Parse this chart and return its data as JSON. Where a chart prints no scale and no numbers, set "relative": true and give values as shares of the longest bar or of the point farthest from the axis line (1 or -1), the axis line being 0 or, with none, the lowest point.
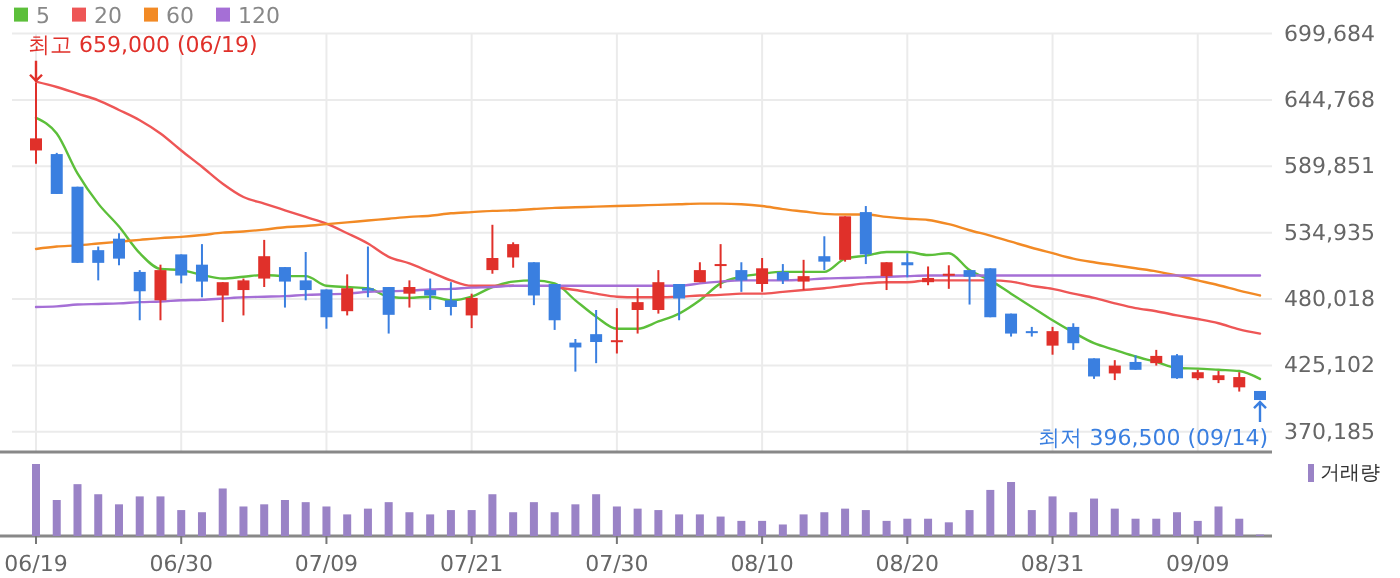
{
  "chart_data": [
    {
      "type": "candlestick",
      "categories": [
        null,
        null,
        null,
        null,
        null,
        null,
        null,
        null,
        null,
        null,
        null,
        null,
        null,
        null,
        null,
        null,
        null,
        null,
        null,
        null,
        null,
        null,
        null,
        null,
        null,
        null,
        null,
        null,
        null,
        null,
        null,
        null,
        null,
        null,
        null,
        null,
        null,
        null,
        null,
        null,
        null,
        null,
        null,
        null,
        null,
        null,
        null,
        null,
        null,
        null,
        null,
        null,
        null,
        null,
        null,
        null,
        null,
        null,
        null,
        null
      ],
      "ohlc": [
        [
          603000,
          659000,
          592000,
          613000
        ],
        [
          600000,
          601000,
          567000,
          567000
        ],
        [
          573000,
          573000,
          510000,
          510000
        ],
        [
          520500,
          523500,
          495500,
          510000
        ],
        [
          530000,
          534500,
          508000,
          513500
        ],
        [
          502500,
          504000,
          462500,
          486500
        ],
        [
          479000,
          508500,
          462500,
          504000
        ],
        [
          517000,
          517000,
          493000,
          499500
        ],
        [
          508500,
          525500,
          481500,
          494500
        ],
        [
          483000,
          494000,
          461000,
          494000
        ],
        [
          487500,
          497000,
          466500,
          495500
        ],
        [
          497000,
          529000,
          490000,
          515500
        ],
        [
          506500,
          506500,
          473000,
          494500
        ],
        [
          495500,
          519000,
          479000,
          487500
        ],
        [
          488000,
          488000,
          455500,
          465000
        ],
        [
          470000,
          500500,
          466500,
          489000
        ],
        [
          489000,
          523500,
          481500,
          487000
        ],
        [
          490000,
          490000,
          451500,
          467000
        ],
        [
          484500,
          495500,
          473000,
          490000
        ],
        [
          487500,
          497000,
          471000,
          483000
        ],
        [
          479000,
          494000,
          466500,
          473500
        ],
        [
          466500,
          484500,
          456000,
          481000
        ],
        [
          504000,
          541500,
          501000,
          514000
        ],
        [
          514500,
          527000,
          506000,
          525500
        ],
        [
          510500,
          510500,
          475000,
          483000
        ],
        [
          492500,
          492500,
          454500,
          462500
        ],
        [
          444000,
          447000,
          420000,
          440000
        ],
        [
          451000,
          471000,
          427000,
          444500
        ],
        [
          445000,
          472500,
          435000,
          446000
        ],
        [
          471000,
          489000,
          451500,
          477500
        ],
        [
          471000,
          504000,
          468000,
          494000
        ],
        [
          492500,
          492500,
          462500,
          480500
        ],
        [
          494000,
          510500,
          494000,
          504000
        ],
        [
          508000,
          525500,
          489000,
          509000
        ],
        [
          504000,
          510500,
          486000,
          495500
        ],
        [
          492500,
          514000,
          486000,
          505500
        ],
        [
          502500,
          509000,
          492500,
          495500
        ],
        [
          494500,
          512500,
          487500,
          499000
        ],
        [
          515500,
          532000,
          504000,
          511000
        ],
        [
          512500,
          548500,
          511000,
          548500
        ],
        [
          552000,
          557000,
          509000,
          517000
        ],
        [
          499000,
          510500,
          487500,
          510500
        ],
        [
          510500,
          518000,
          498000,
          508000
        ],
        [
          494000,
          507000,
          491500,
          497500
        ],
        [
          500000,
          508000,
          488500,
          501000
        ],
        [
          504000,
          504000,
          475500,
          498500
        ],
        [
          505500,
          505500,
          465000,
          465000
        ],
        [
          468000,
          468000,
          449000,
          451500
        ],
        [
          453500,
          457000,
          449000,
          452000
        ],
        [
          441500,
          457000,
          434000,
          453500
        ],
        [
          457000,
          460000,
          438000,
          443500
        ],
        [
          431000,
          431000,
          414000,
          416000
        ],
        [
          418500,
          429500,
          413000,
          425000
        ],
        [
          428000,
          433500,
          421500,
          421500
        ],
        [
          427000,
          438000,
          425000,
          433000
        ],
        [
          433500,
          434500,
          414000,
          414500
        ],
        [
          414500,
          421500,
          413000,
          419500
        ],
        [
          413000,
          420500,
          410500,
          417000
        ],
        [
          407000,
          419500,
          403500,
          415500
        ],
        [
          404000,
          404000,
          396500,
          396500
        ]
      ],
      "colors": [
        "#e0302a",
        "#3a7fe0",
        "#3a7fe0",
        "#3a7fe0",
        "#3a7fe0",
        "#3a7fe0",
        "#e0302a",
        "#3a7fe0",
        "#3a7fe0",
        "#e0302a",
        "#e0302a",
        "#e0302a",
        "#3a7fe0",
        "#3a7fe0",
        "#3a7fe0",
        "#e0302a",
        "#3a7fe0",
        "#3a7fe0",
        "#e0302a",
        "#3a7fe0",
        "#3a7fe0",
        "#e0302a",
        "#e0302a",
        "#e0302a",
        "#3a7fe0",
        "#3a7fe0",
        "#3a7fe0",
        "#3a7fe0",
        "#e0302a",
        "#e0302a",
        "#e0302a",
        "#3a7fe0",
        "#e0302a",
        "#e0302a",
        "#3a7fe0",
        "#e0302a",
        "#3a7fe0",
        "#e0302a",
        "#3a7fe0",
        "#e0302a",
        "#3a7fe0",
        "#e0302a",
        "#3a7fe0",
        "#e0302a",
        "#e0302a",
        "#3a7fe0",
        "#3a7fe0",
        "#3a7fe0",
        "#3a7fe0",
        "#e0302a",
        "#3a7fe0",
        "#3a7fe0",
        "#e0302a",
        "#3a7fe0",
        "#e0302a",
        "#3a7fe0",
        "#e0302a",
        "#e0302a",
        "#e0302a",
        "#3a7fe0"
      ],
      "series": [
        {
          "name": "5",
          "type": "line",
          "color": "#5cbf3a",
          "values": [
            630000,
            617000,
            584000,
            559000,
            540000,
            518000,
            505000,
            504000,
            500000,
            497000,
            498500,
            500000,
            499000,
            499000,
            491000,
            490000,
            489000,
            482000,
            481000,
            482000,
            479000,
            482000,
            490000,
            494500,
            495500,
            493000,
            479000,
            465500,
            455500,
            455500,
            461500,
            468000,
            479000,
            493000,
            498500,
            501000,
            502500,
            502500,
            502500,
            513500,
            516000,
            519000,
            519000,
            516500,
            518000,
            504000,
            495500,
            484500,
            473500,
            462500,
            452500,
            443500,
            438000,
            432500,
            428000,
            423000,
            422500,
            421500,
            420500,
            414000
          ]
        },
        {
          "name": "20",
          "type": "line",
          "color": "#ee5656",
          "values": [
            660000,
            655500,
            650000,
            644500,
            636500,
            628000,
            617000,
            603000,
            589500,
            575500,
            564500,
            559000,
            553500,
            548000,
            542500,
            534500,
            526000,
            515000,
            509500,
            502500,
            495500,
            491000,
            491000,
            491000,
            null,
            490000,
            487500,
            484500,
            482000,
            481500,
            481500,
            482000,
            483000,
            483500,
            484500,
            484500,
            486000,
            487500,
            489000,
            491000,
            493000,
            494000,
            494000,
            495500,
            495500,
            495500,
            495500,
            494500,
            491000,
            488500,
            484500,
            481000,
            476500,
            472500,
            470000,
            466500,
            463500,
            460000,
            455000,
            451500
          ]
        },
        {
          "name": "60",
          "type": "line",
          "color": "#f28a25",
          "values": [
            521500,
            523500,
            524500,
            526000,
            527500,
            529000,
            530500,
            531500,
            533000,
            535000,
            536000,
            537500,
            539500,
            540500,
            542000,
            543500,
            545000,
            546500,
            548000,
            549000,
            551000,
            552000,
            553000,
            553500,
            554500,
            555500,
            556000,
            556500,
            557000,
            557500,
            558000,
            558500,
            559000,
            559000,
            558500,
            557000,
            554500,
            552500,
            550500,
            550000,
            550000,
            548000,
            546500,
            545500,
            542000,
            537000,
            532500,
            527500,
            522500,
            518000,
            513500,
            510500,
            508000,
            505500,
            503000,
            499500,
            495500,
            491500,
            487000,
            483000
          ]
        },
        {
          "name": "120",
          "type": "line",
          "color": "#a56fd6",
          "values": [
            473500,
            474000,
            475500,
            476000,
            476500,
            477500,
            478000,
            479000,
            479500,
            480500,
            481500,
            482000,
            482500,
            483500,
            484000,
            484500,
            486000,
            486500,
            487000,
            488000,
            488500,
            489500,
            490000,
            491000,
            491000,
            491000,
            491000,
            491000,
            491000,
            491000,
            491000,
            491000,
            493000,
            494500,
            495500,
            495500,
            495500,
            496000,
            497000,
            497500,
            498000,
            498500,
            499000,
            499500,
            499500,
            499500,
            499500,
            499500,
            499500,
            499500,
            499500,
            499500,
            499500,
            499500,
            499500,
            499500,
            499500,
            499500,
            499500,
            499500
          ]
        }
      ],
      "ylim": [
        353500,
        699684
      ],
      "yticks": [
        {
          "value": 370185,
          "label": "370,185"
        },
        {
          "value": 425102,
          "label": "425,102"
        },
        {
          "value": 480018,
          "label": "480,018"
        },
        {
          "value": 534935,
          "label": "534,935"
        },
        {
          "value": 589851,
          "label": "589,851"
        },
        {
          "value": 644768,
          "label": "644,768"
        },
        {
          "value": 699684,
          "label": "699,684"
        }
      ],
      "grid": "y",
      "legend": "top left",
      "tick_labels": "y",
      "annotations": [
        "최고 659,000 (06/19)",
        "최저 396,500 (09/14)"
      ]
    },
    {
      "type": "bar",
      "categories": [
        "06/19",
        null,
        null,
        null,
        null,
        null,
        null,
        "06/30",
        null,
        null,
        null,
        null,
        null,
        null,
        "07/09",
        null,
        null,
        null,
        null,
        null,
        null,
        "07/21",
        null,
        null,
        null,
        null,
        null,
        null,
        "07/30",
        null,
        null,
        null,
        null,
        null,
        null,
        "08/10",
        null,
        null,
        null,
        null,
        null,
        null,
        "08/20",
        null,
        null,
        null,
        null,
        null,
        null,
        "08/31",
        null,
        null,
        null,
        null,
        null,
        null,
        "09/09",
        null,
        null,
        null
      ],
      "series": [
        {
          "name": "거래량",
          "color": "#9a83c6",
          "values": [
            1,
            0.5,
            0.72,
            0.58,
            0.44,
            0.55,
            0.55,
            0.36,
            0.33,
            0.66,
            0.41,
            0.44,
            0.5,
            0.47,
            0.41,
            0.3,
            0.38,
            0.47,
            0.33,
            0.3,
            0.36,
            0.36,
            0.58,
            0.33,
            0.47,
            0.33,
            0.44,
            0.58,
            0.41,
            0.38,
            0.36,
            0.3,
            0.3,
            0.27,
            0.21,
            0.21,
            0.16,
            0.3,
            0.33,
            0.38,
            0.36,
            0.21,
            0.24,
            0.24,
            0.19,
            0.36,
            0.64,
            0.75,
            0.36,
            0.55,
            0.33,
            0.52,
            0.38,
            0.24,
            0.24,
            0.33,
            0.21,
            0.41,
            0.24,
            0.02
          ]
        }
      ],
      "relative": true,
      "legend": "top right",
      "tick_labels": "x",
      "grid": "x"
    }
  ]
}
